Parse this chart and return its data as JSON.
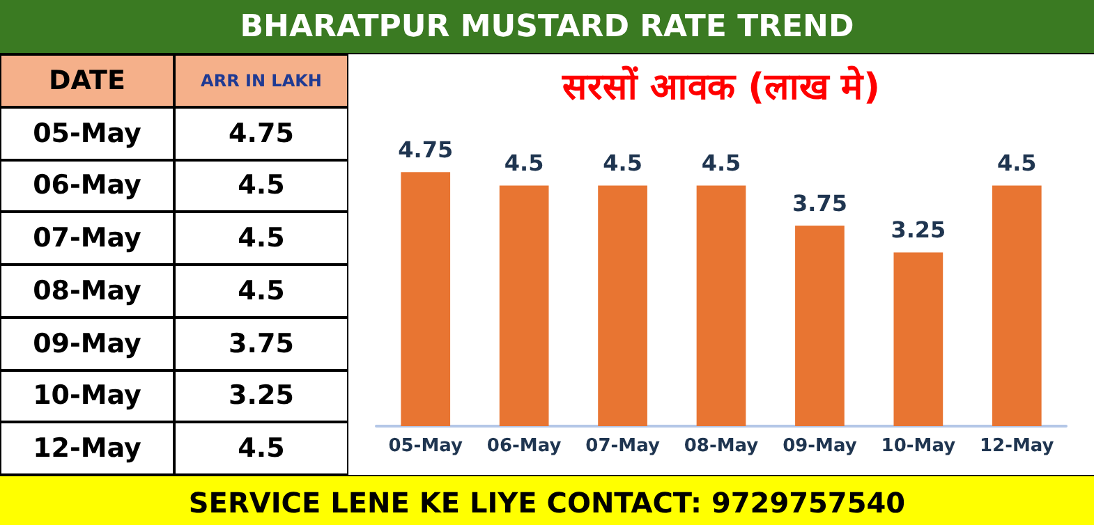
{
  "chart_data": {
    "type": "bar",
    "title": "BHARATPUR MUSTARD RATE TREND",
    "subtitle": "सरसों आवक (लाख मे)",
    "categories": [
      "05-May",
      "06-May",
      "07-May",
      "08-May",
      "09-May",
      "10-May",
      "12-May"
    ],
    "values": [
      4.75,
      4.5,
      4.5,
      4.5,
      3.75,
      3.25,
      4.5
    ],
    "value_labels": [
      "4.75",
      "4.5",
      "4.5",
      "4.5",
      "3.75",
      "3.25",
      "4.5"
    ],
    "color": "#e87532",
    "grid": false,
    "annotations": [
      "DATE",
      "ARR IN LAKH",
      "SERVICE LENE KE LIYE CONTACT: 9729757540"
    ]
  }
}
